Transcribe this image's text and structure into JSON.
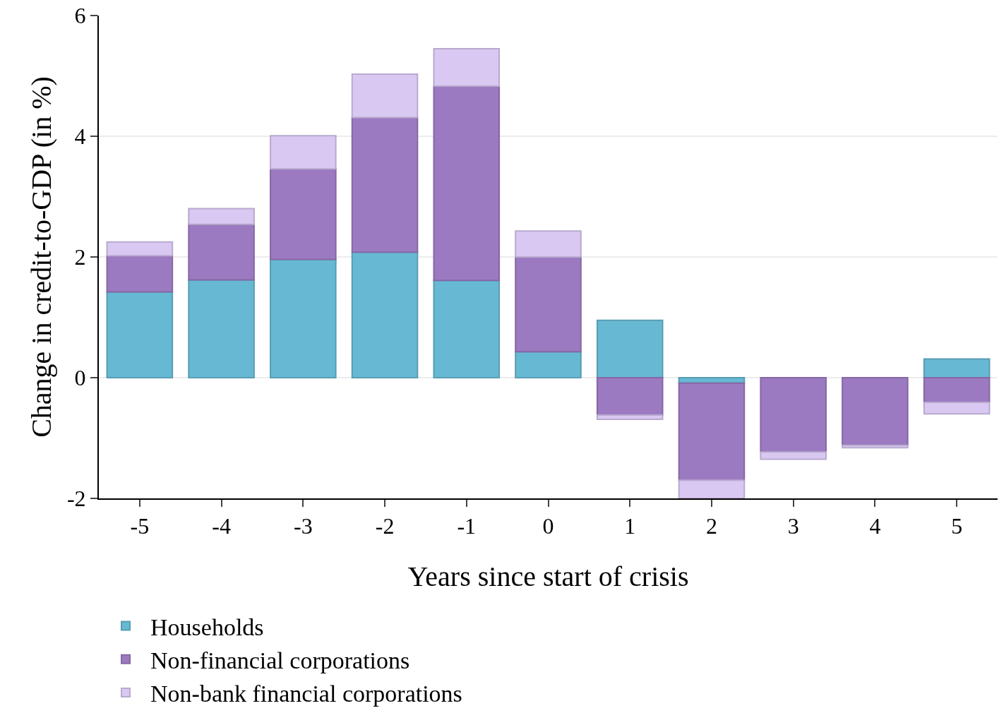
{
  "chart_data": {
    "type": "bar",
    "stacked": true,
    "xlabel": "Years since start of crisis",
    "ylabel": "Change in credit-to-GDP (in %)",
    "categories": [
      "-5",
      "-4",
      "-3",
      "-2",
      "-1",
      "0",
      "1",
      "2",
      "3",
      "4",
      "5"
    ],
    "series": [
      {
        "name": "Households",
        "color": "#67b9d3",
        "values": [
          1.42,
          1.62,
          1.96,
          2.08,
          1.61,
          0.43,
          0.95,
          -0.09,
          0,
          0,
          0.31
        ]
      },
      {
        "name": "Non-financial corporations",
        "color": "#9c7ac1",
        "values": [
          0.6,
          0.92,
          1.5,
          2.23,
          3.22,
          1.57,
          -0.62,
          -1.61,
          -1.23,
          -1.12,
          -0.41
        ]
      },
      {
        "name": "Non-bank financial corporations",
        "color": "#d9c8f2",
        "values": [
          0.23,
          0.26,
          0.55,
          0.72,
          0.62,
          0.43,
          -0.07,
          -0.3,
          -0.12,
          -0.04,
          -0.19
        ]
      }
    ],
    "ylim": [
      -2,
      6
    ],
    "yticks": [
      -2,
      0,
      2,
      4,
      6
    ],
    "grid": "y",
    "legend": "bottom"
  }
}
